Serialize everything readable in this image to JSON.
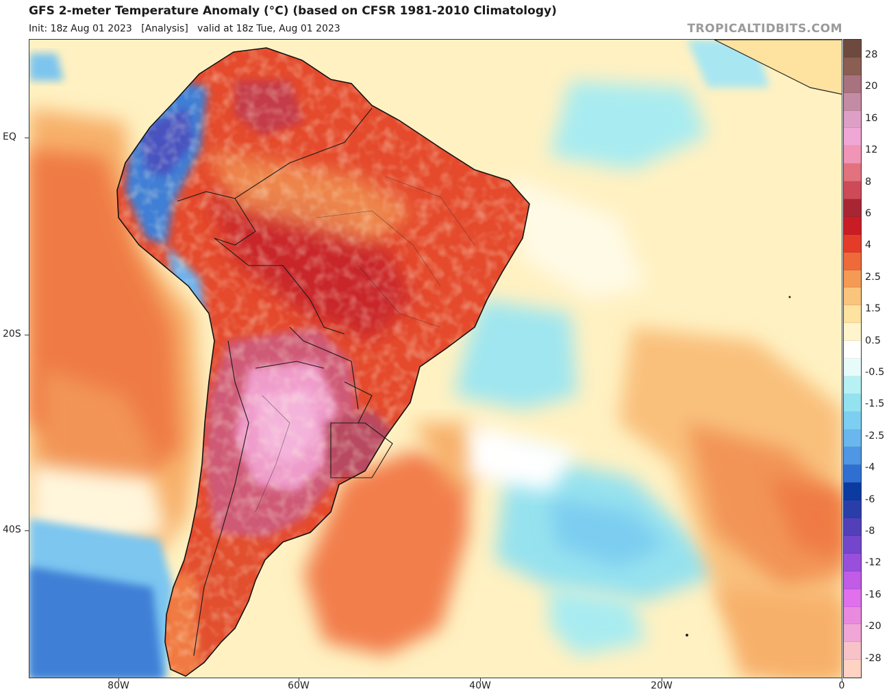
{
  "header": {
    "title": "GFS 2-meter Temperature Anomaly (°C) (based on CFSR 1981-2010 Climatology)",
    "subtitle": "Init: 18z Aug 01 2023   [Analysis]   valid at 18z Tue, Aug 01 2023",
    "credit": "TROPICALTIDBITS.COM"
  },
  "axes": {
    "lat_labels": [
      "EQ",
      "20S",
      "40S"
    ],
    "lon_labels": [
      "80W",
      "60W",
      "40W",
      "20W",
      "0"
    ]
  },
  "colorbar": {
    "labels": [
      "28",
      "20",
      "16",
      "12",
      "8",
      "6",
      "4",
      "2.5",
      "1.5",
      "0.5",
      "-0.5",
      "-1.5",
      "-2.5",
      "-4",
      "-6",
      "-8",
      "-12",
      "-16",
      "-20",
      "-28"
    ],
    "colors": [
      "#6e4a3e",
      "#8a5e52",
      "#a8727e",
      "#c48ba5",
      "#de9fc6",
      "#f0a7d5",
      "#f195b7",
      "#e2727e",
      "#ce4a58",
      "#a82633",
      "#c91c25",
      "#e53c2a",
      "#ef6a3a",
      "#f59a55",
      "#fbc47c",
      "#fde2a0",
      "#fff5cc",
      "#ffffff",
      "#e8fbfb",
      "#b6f1f3",
      "#93e2ef",
      "#7ccff0",
      "#69b7ee",
      "#4f96e4",
      "#2f6fd2",
      "#0b3aa0",
      "#2a3eaa",
      "#5140b8",
      "#7446cb",
      "#9a4fdc",
      "#c05ce6",
      "#e070ec",
      "#e98ade",
      "#f0a6d6",
      "#f7c2c8",
      "#ffd3c4"
    ]
  }
}
